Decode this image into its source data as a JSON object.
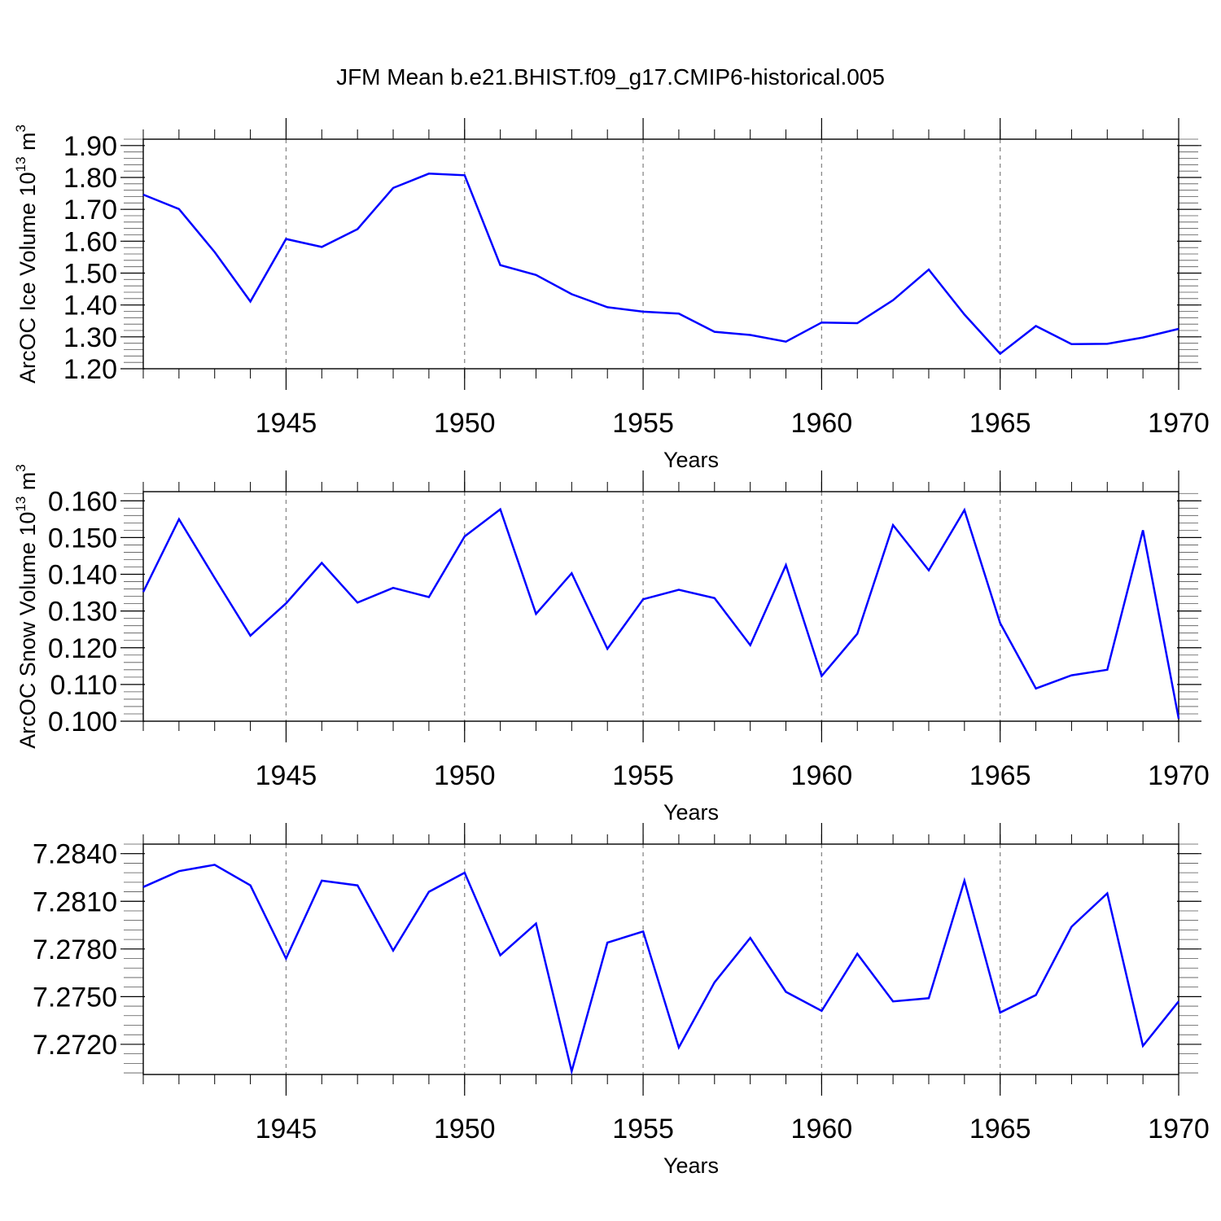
{
  "title": "JFM Mean b.e21.BHIST.f09_g17.CMIP6-historical.005",
  "line_color": "#0000ff",
  "grid_color": "#888888",
  "chart_data": [
    {
      "type": "line",
      "ylabel_main": "ArcOC Ice Volume 10",
      "ylabel_exp": "13",
      "ylabel_unit": " m",
      "ylabel_unit_exp": "3",
      "xlabel": "Years",
      "xlim": [
        1941,
        1970
      ],
      "ylim": [
        1.2,
        1.92
      ],
      "yticks": [
        1.2,
        1.3,
        1.4,
        1.5,
        1.6,
        1.7,
        1.8,
        1.9
      ],
      "ytick_labels": [
        "1.20",
        "1.30",
        "1.40",
        "1.50",
        "1.60",
        "1.70",
        "1.80",
        "1.90"
      ],
      "yminor_step": 0.02,
      "xticks": [
        1945,
        1950,
        1955,
        1960,
        1965,
        1970
      ],
      "xtick_labels": [
        "1945",
        "1950",
        "1955",
        "1960",
        "1965",
        "1970"
      ],
      "x": [
        1941,
        1942,
        1943,
        1944,
        1945,
        1946,
        1947,
        1948,
        1949,
        1950,
        1951,
        1952,
        1953,
        1954,
        1955,
        1956,
        1957,
        1958,
        1959,
        1960,
        1961,
        1962,
        1963,
        1964,
        1965,
        1966,
        1967,
        1968,
        1969,
        1970
      ],
      "values": [
        1.746,
        1.701,
        1.566,
        1.411,
        1.607,
        1.582,
        1.638,
        1.767,
        1.812,
        1.807,
        1.525,
        1.494,
        1.434,
        1.393,
        1.379,
        1.373,
        1.316,
        1.306,
        1.285,
        1.345,
        1.343,
        1.415,
        1.511,
        1.37,
        1.247,
        1.334,
        1.277,
        1.278,
        1.298,
        1.325
      ]
    },
    {
      "type": "line",
      "ylabel_main": "ArcOC Snow Volume 10",
      "ylabel_exp": "13",
      "ylabel_unit": " m",
      "ylabel_unit_exp": "3",
      "xlabel": "Years",
      "xlim": [
        1941,
        1970
      ],
      "ylim": [
        0.1,
        0.1625
      ],
      "yticks": [
        0.1,
        0.11,
        0.12,
        0.13,
        0.14,
        0.15,
        0.16
      ],
      "ytick_labels": [
        "0.100",
        "0.110",
        "0.120",
        "0.130",
        "0.140",
        "0.150",
        "0.160"
      ],
      "yminor_step": 0.002,
      "xticks": [
        1945,
        1950,
        1955,
        1960,
        1965,
        1970
      ],
      "xtick_labels": [
        "1945",
        "1950",
        "1955",
        "1960",
        "1965",
        "1970"
      ],
      "x": [
        1941,
        1942,
        1943,
        1944,
        1945,
        1946,
        1947,
        1948,
        1949,
        1950,
        1951,
        1952,
        1953,
        1954,
        1955,
        1956,
        1957,
        1958,
        1959,
        1960,
        1961,
        1962,
        1963,
        1964,
        1965,
        1966,
        1967,
        1968,
        1969,
        1970
      ],
      "values": [
        0.1352,
        0.155,
        0.139,
        0.1233,
        0.1321,
        0.1431,
        0.1323,
        0.1363,
        0.1338,
        0.1503,
        0.1577,
        0.1292,
        0.1403,
        0.1197,
        0.1332,
        0.1358,
        0.1335,
        0.1207,
        0.1425,
        0.1123,
        0.1238,
        0.1534,
        0.1411,
        0.1575,
        0.1267,
        0.1089,
        0.1125,
        0.114,
        0.152,
        0.1007
      ]
    },
    {
      "type": "line",
      "xlabel": "Years",
      "xlim": [
        1941,
        1970
      ],
      "ylim": [
        7.2701,
        7.2846
      ],
      "yticks": [
        7.272,
        7.275,
        7.278,
        7.281,
        7.284
      ],
      "ytick_labels": [
        "7.2720",
        "7.2750",
        "7.2780",
        "7.2810",
        "7.2840"
      ],
      "yminor_step": 0.0006,
      "xticks": [
        1945,
        1950,
        1955,
        1960,
        1965,
        1970
      ],
      "xtick_labels": [
        "1945",
        "1950",
        "1955",
        "1960",
        "1965",
        "1970"
      ],
      "x": [
        1941,
        1942,
        1943,
        1944,
        1945,
        1946,
        1947,
        1948,
        1949,
        1950,
        1951,
        1952,
        1953,
        1954,
        1955,
        1956,
        1957,
        1958,
        1959,
        1960,
        1961,
        1962,
        1963,
        1964,
        1965,
        1966,
        1967,
        1968,
        1969,
        1970
      ],
      "values": [
        7.2819,
        7.2829,
        7.2833,
        7.282,
        7.2774,
        7.2823,
        7.282,
        7.2779,
        7.2816,
        7.2828,
        7.2776,
        7.2796,
        7.2703,
        7.2784,
        7.2791,
        7.2718,
        7.2759,
        7.2787,
        7.2753,
        7.2741,
        7.2777,
        7.2747,
        7.2749,
        7.2823,
        7.274,
        7.2751,
        7.2794,
        7.2815,
        7.2719,
        7.2747
      ]
    }
  ]
}
